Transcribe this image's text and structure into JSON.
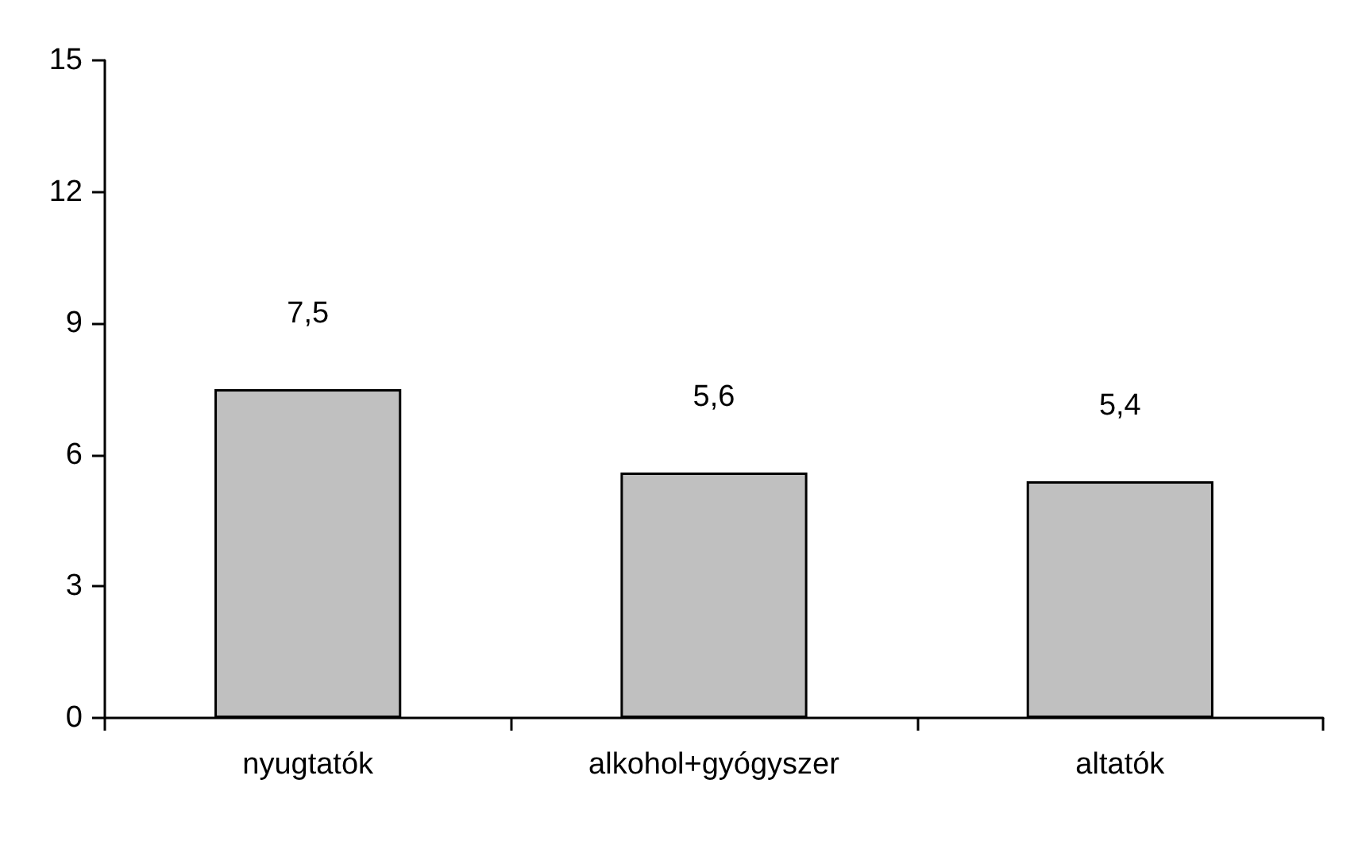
{
  "chart_data": {
    "type": "bar",
    "categories": [
      "nyugtatók",
      "alkohol+gyógyszer",
      "altatók"
    ],
    "values": [
      7.5,
      5.6,
      5.4
    ],
    "value_labels": [
      "7,5",
      "5,6",
      "5,4"
    ],
    "color": "#c0c0c0",
    "ylim": [
      0,
      15
    ],
    "yticks": [
      0,
      3,
      6,
      9,
      12,
      15
    ],
    "grid": false
  }
}
